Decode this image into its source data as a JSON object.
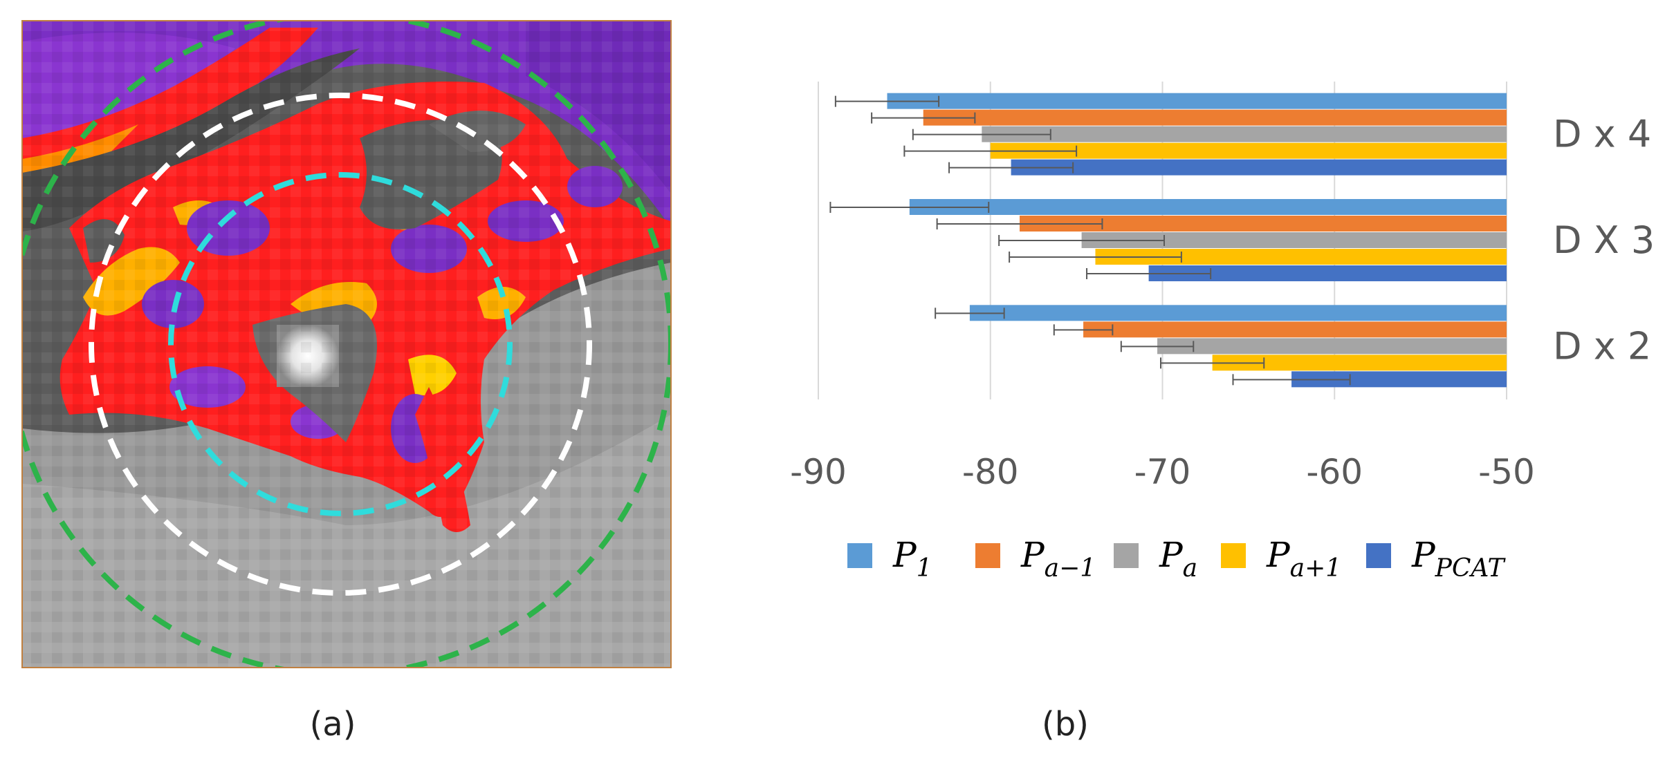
{
  "panel_a": {
    "caption": "(a)",
    "description_icon": "ct-heatmap-image"
  },
  "panel_b": {
    "caption": "(b)"
  },
  "chart_data": {
    "type": "bar",
    "orientation": "horizontal",
    "categories": [
      "D x 4",
      "D X 3",
      "D x 2"
    ],
    "series": [
      {
        "name": "P_1",
        "label_base": "P",
        "label_sub": "1",
        "color": "#5b9bd5",
        "values": [
          -86.0,
          -84.7,
          -81.2
        ],
        "errors": [
          3.0,
          4.6,
          2.0
        ]
      },
      {
        "name": "P_{a−1}",
        "label_base": "P",
        "label_sub": "a−1",
        "color": "#ed7d31",
        "values": [
          -83.9,
          -78.3,
          -74.6
        ],
        "errors": [
          3.0,
          4.8,
          1.7
        ]
      },
      {
        "name": "P_a",
        "label_base": "P",
        "label_sub": "a",
        "color": "#a5a5a5",
        "values": [
          -80.5,
          -74.7,
          -70.3
        ],
        "errors": [
          4.0,
          4.8,
          2.1
        ]
      },
      {
        "name": "P_{a+1}",
        "label_base": "P",
        "label_sub": "a+1",
        "color": "#ffc000",
        "values": [
          -80.0,
          -73.9,
          -67.1
        ],
        "errors": [
          5.0,
          5.0,
          3.0
        ]
      },
      {
        "name": "P_{PCAT}",
        "label_base": "P",
        "label_sub": "PCAT",
        "color": "#4472c4",
        "values": [
          -78.8,
          -70.8,
          -62.5
        ],
        "errors": [
          3.6,
          3.6,
          3.4
        ]
      }
    ],
    "xlim": [
      -90,
      -50
    ],
    "xticks": [
      "-90",
      "-80",
      "-70",
      "-60",
      "-50"
    ],
    "grid": "vertical",
    "legend": "bottom",
    "title": "",
    "xlabel": "",
    "ylabel": ""
  }
}
